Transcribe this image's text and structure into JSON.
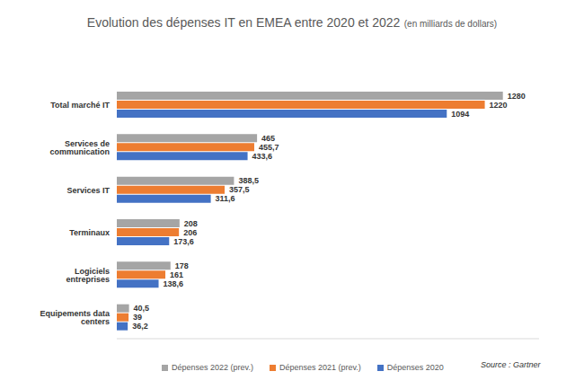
{
  "chart_data": {
    "type": "bar",
    "orientation": "horizontal",
    "title": "Evolution des dépenses IT en EMEA entre 2020 et 2022",
    "subtitle": "(en milliards de dollars)",
    "categories": [
      "Total marché IT",
      "Services de communication",
      "Services IT",
      "Terminaux",
      "Logiciels entreprises",
      "Equipements data centers"
    ],
    "series": [
      {
        "name": "Dépenses 2022 (prev.)",
        "color": "#a5a5a5",
        "values": [
          1280,
          465,
          388.5,
          208,
          178,
          40.5
        ],
        "value_labels": [
          "1280",
          "465",
          "388,5",
          "208",
          "178",
          "40,5"
        ]
      },
      {
        "name": "Dépenses 2021 (prev.)",
        "color": "#ed7d31",
        "values": [
          1220,
          455.7,
          357.5,
          206,
          161,
          39
        ],
        "value_labels": [
          "1220",
          "455,7",
          "357,5",
          "206",
          "161",
          "39"
        ]
      },
      {
        "name": "Dépenses 2020",
        "color": "#4472c4",
        "values": [
          1094,
          433.6,
          311.6,
          173.6,
          138.6,
          36.2
        ],
        "value_labels": [
          "1094",
          "433,6",
          "311,6",
          "173,6",
          "138,6",
          "36,2"
        ]
      }
    ],
    "xlim": [
      0,
      1400
    ],
    "data_labels": true,
    "tick_labels": "y",
    "grid": false,
    "legend": "bottom",
    "annotations": [
      "Source : Gartner"
    ]
  }
}
